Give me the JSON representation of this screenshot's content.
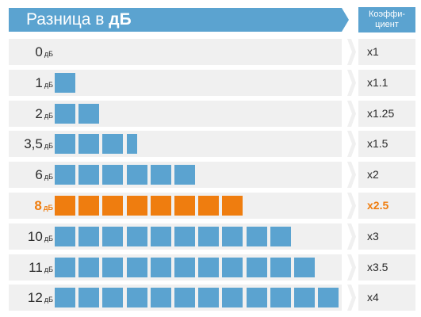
{
  "header": {
    "title_prefix": "Разница в",
    "title_bold": "дБ",
    "coef_line1": "Коэффи-",
    "coef_line2": "циент"
  },
  "colors": {
    "blue": "#5ba3d0",
    "orange": "#ef7d0f",
    "row_bg": "#f0f0f0"
  },
  "rows": [
    {
      "db": "0",
      "unit": "дБ",
      "blocks": 0,
      "coef": "x1",
      "highlight": false
    },
    {
      "db": "1",
      "unit": "дБ",
      "blocks": 1,
      "coef": "x1.1",
      "highlight": false
    },
    {
      "db": "2",
      "unit": "дБ",
      "blocks": 2,
      "coef": "x1.25",
      "highlight": false
    },
    {
      "db": "3,5",
      "unit": "дБ",
      "blocks": 3.5,
      "coef": "x1.5",
      "highlight": false
    },
    {
      "db": "6",
      "unit": "дБ",
      "blocks": 6,
      "coef": "x2",
      "highlight": false
    },
    {
      "db": "8",
      "unit": "дБ",
      "blocks": 8,
      "coef": "x2.5",
      "highlight": true
    },
    {
      "db": "10",
      "unit": "дБ",
      "blocks": 10,
      "coef": "x3",
      "highlight": false
    },
    {
      "db": "11",
      "unit": "дБ",
      "blocks": 11,
      "coef": "x3.5",
      "highlight": false
    },
    {
      "db": "12",
      "unit": "дБ",
      "blocks": 12,
      "coef": "x4",
      "highlight": false
    }
  ]
}
